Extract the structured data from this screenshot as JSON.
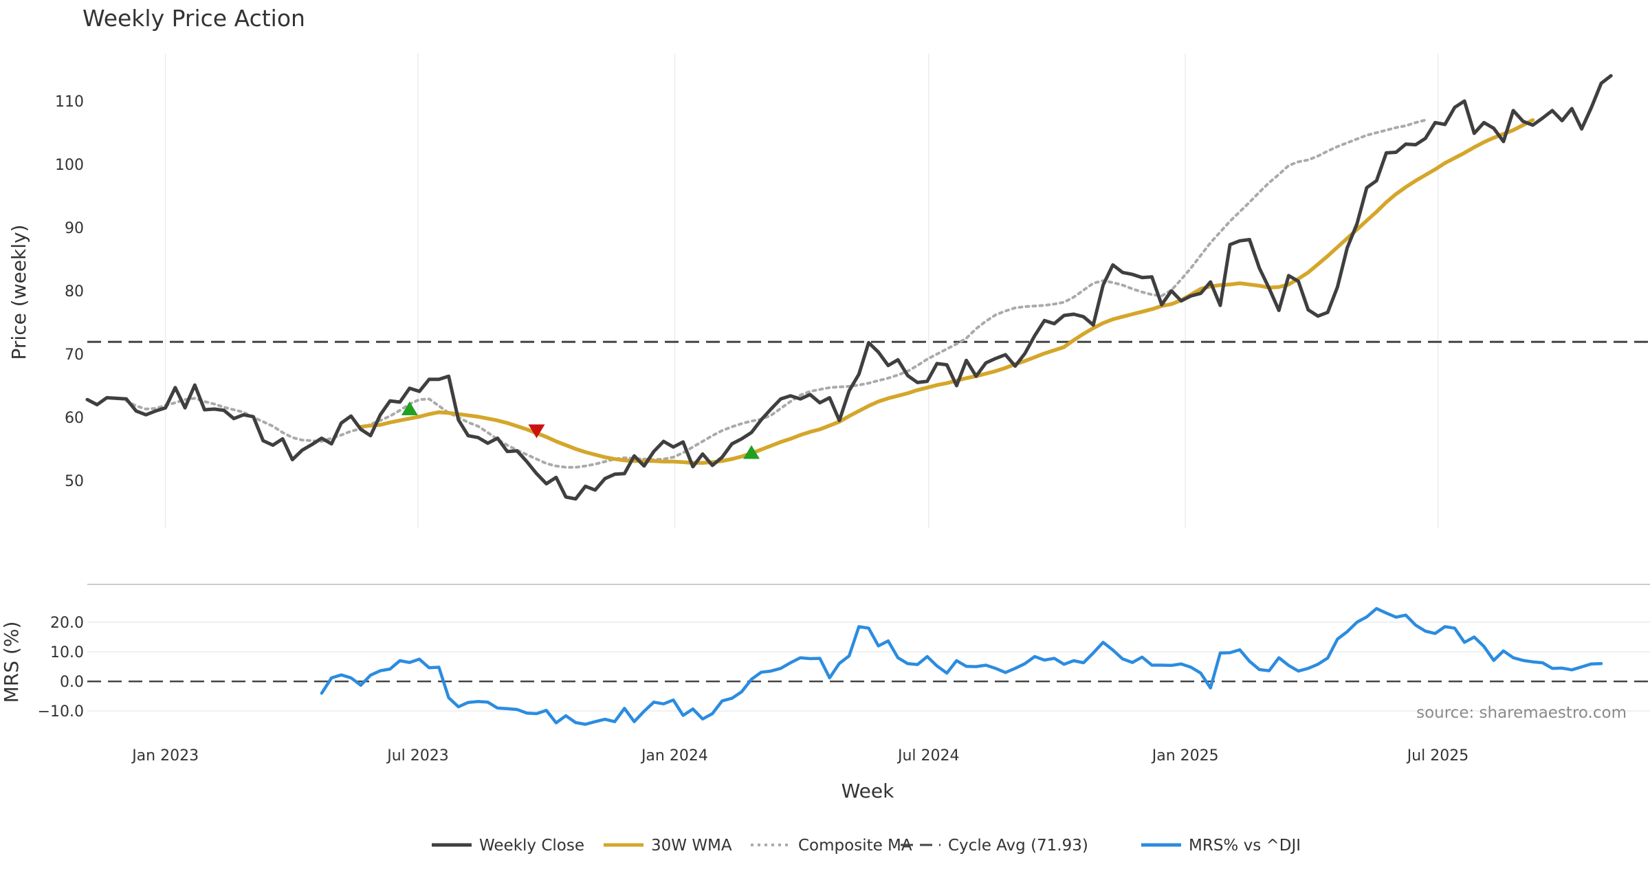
{
  "chart_data": [
    {
      "type": "line",
      "title": "Weekly Price Action",
      "ylabel": "Price (weekly)",
      "ylim": [
        42.5,
        117.5
      ],
      "yticks": [
        50,
        60,
        70,
        80,
        90,
        100,
        110
      ],
      "grid": true,
      "x_domain": [
        "2022-11-06",
        "2025-11-30"
      ],
      "reference_line": {
        "name": "Cycle Avg (71.93)",
        "value": 71.93,
        "color": "#444444",
        "style": "dashed"
      },
      "series": [
        {
          "name": "Weekly Close",
          "color": "#3f3f3f",
          "x_start": "2022-11-06",
          "step_days": 7,
          "values": [
            62.8,
            62.0,
            63.1,
            63.0,
            62.9,
            61.0,
            60.4,
            61.0,
            61.5,
            64.7,
            61.5,
            65.1,
            61.2,
            61.3,
            61.1,
            59.8,
            60.4,
            60.1,
            56.3,
            55.6,
            56.6,
            53.3,
            54.8,
            55.7,
            56.7,
            55.8,
            59.1,
            60.2,
            58.1,
            57.1,
            60.4,
            62.6,
            62.4,
            64.6,
            64.1,
            66.0,
            66.0,
            66.5,
            59.6,
            57.1,
            56.8,
            55.9,
            56.7,
            54.6,
            54.7,
            53.0,
            51.1,
            49.5,
            50.5,
            47.4,
            47.1,
            49.1,
            48.5,
            50.3,
            51.0,
            51.1,
            53.9,
            52.3,
            54.6,
            56.2,
            55.3,
            56.1,
            52.2,
            54.2,
            52.4,
            53.7,
            55.8,
            56.6,
            57.6,
            59.6,
            61.3,
            62.9,
            63.4,
            62.9,
            63.6,
            62.3,
            63.1,
            59.5,
            64.2,
            66.8,
            71.8,
            70.3,
            68.2,
            69.1,
            66.6,
            65.5,
            65.7,
            68.5,
            68.3,
            65.0,
            69.0,
            66.5,
            68.6,
            69.3,
            69.9,
            68.1,
            70.1,
            72.9,
            75.3,
            74.8,
            76.1,
            76.3,
            75.9,
            74.6,
            80.9,
            84.1,
            82.9,
            82.6,
            82.1,
            82.2,
            77.8,
            80.0,
            78.4,
            79.2,
            79.6,
            81.4,
            77.7,
            87.3,
            87.9,
            88.1,
            83.6,
            80.4,
            76.9,
            82.4,
            81.5,
            77.0,
            76.0,
            76.6,
            80.6,
            86.8,
            90.6,
            96.3,
            97.4,
            101.8,
            101.9,
            103.2,
            103.1,
            104.1,
            106.6,
            106.3,
            109.0,
            110.0,
            104.9,
            106.6,
            105.7,
            103.6,
            108.5,
            106.8,
            106.2,
            107.3,
            108.5,
            106.9,
            108.8,
            105.6,
            109.0,
            112.8,
            114.0
          ]
        },
        {
          "name": "30W WMA",
          "color": "#d4a62a",
          "x_start": "2023-05-21",
          "step_days": 7,
          "values": [
            58.5,
            58.7,
            58.8,
            59.2,
            59.5,
            59.8,
            60.1,
            60.5,
            60.8,
            60.7,
            60.5,
            60.3,
            60.1,
            59.8,
            59.5,
            59.1,
            58.6,
            58.1,
            57.5,
            56.9,
            56.2,
            55.6,
            55.0,
            54.5,
            54.1,
            53.7,
            53.4,
            53.2,
            53.1,
            53.1,
            53.1,
            53.0,
            53.0,
            52.9,
            52.8,
            52.8,
            52.9,
            53.1,
            53.4,
            53.8,
            54.3,
            54.9,
            55.5,
            56.1,
            56.6,
            57.2,
            57.7,
            58.1,
            58.7,
            59.3,
            60.2,
            61.0,
            61.8,
            62.5,
            63.0,
            63.4,
            63.8,
            64.3,
            64.7,
            65.1,
            65.4,
            65.8,
            66.2,
            66.5,
            66.9,
            67.3,
            67.8,
            68.4,
            68.9,
            69.5,
            70.1,
            70.6,
            71.1,
            72.2,
            73.2,
            74.1,
            74.9,
            75.5,
            75.9,
            76.3,
            76.7,
            77.1,
            77.6,
            77.9,
            78.5,
            79.4,
            80.3,
            80.7,
            80.9,
            81.0,
            81.2,
            81.0,
            80.8,
            80.5,
            80.6,
            81.0,
            81.9,
            82.9,
            84.2,
            85.5,
            86.9,
            88.3,
            89.7,
            91.1,
            92.5,
            94.0,
            95.3,
            96.4,
            97.4,
            98.3,
            99.2,
            100.2,
            101.0,
            101.8,
            102.7,
            103.5,
            104.2,
            104.8,
            105.4,
            106.2,
            107.0
          ]
        },
        {
          "name": "Composite MA",
          "color": "#aaaaaa",
          "style": "dotted",
          "x_start": "2022-12-04",
          "step_days": 7,
          "values": [
            62.6,
            61.8,
            61.3,
            61.4,
            61.9,
            62.3,
            62.8,
            63.0,
            62.5,
            62.1,
            61.6,
            61.2,
            60.8,
            60.0,
            59.3,
            58.6,
            57.6,
            56.8,
            56.4,
            56.3,
            56.2,
            56.7,
            57.2,
            57.8,
            58.2,
            58.9,
            59.5,
            60.2,
            61.1,
            62.1,
            62.8,
            62.9,
            61.8,
            60.7,
            60.0,
            59.2,
            58.6,
            57.6,
            56.5,
            55.6,
            54.8,
            54.1,
            53.4,
            52.7,
            52.3,
            52.1,
            52.1,
            52.3,
            52.6,
            53.0,
            53.4,
            53.6,
            53.5,
            53.4,
            53.3,
            53.4,
            53.7,
            54.4,
            55.3,
            56.2,
            57.1,
            57.9,
            58.5,
            59.0,
            59.4,
            59.7,
            60.3,
            61.4,
            62.5,
            63.5,
            64.1,
            64.4,
            64.7,
            64.8,
            64.9,
            65.1,
            65.4,
            65.8,
            66.2,
            66.7,
            67.3,
            68.2,
            69.2,
            70.0,
            70.8,
            71.6,
            72.5,
            74.0,
            75.2,
            76.2,
            76.8,
            77.3,
            77.5,
            77.6,
            77.7,
            77.9,
            78.2,
            79.0,
            80.1,
            81.2,
            81.6,
            81.3,
            80.9,
            80.3,
            79.8,
            79.4,
            79.2,
            80.1,
            81.8,
            83.6,
            85.6,
            87.6,
            89.3,
            91.0,
            92.5,
            94.0,
            95.6,
            97.1,
            98.4,
            99.8,
            100.4,
            100.7,
            101.3,
            102.1,
            102.8,
            103.4,
            104.0,
            104.6,
            105.0,
            105.4,
            105.8,
            106.1,
            106.6,
            107.0
          ]
        }
      ],
      "signals": [
        {
          "type": "buy",
          "date": "2023-06-25",
          "value": 61.3,
          "color": "#22a022"
        },
        {
          "type": "sell",
          "date": "2023-09-24",
          "value": 57.9,
          "color": "#cc1111"
        },
        {
          "type": "buy",
          "date": "2024-02-25",
          "value": 54.4,
          "color": "#22a022"
        }
      ],
      "annotation": "source: sharemaestro.com"
    },
    {
      "type": "line",
      "ylabel": "MRS (%)",
      "xlabel": "Week",
      "ylim": [
        -16,
        30
      ],
      "yticks": [
        -10.0,
        0.0,
        10.0,
        20.0
      ],
      "ytick_labels": [
        "−10.0",
        "0.0",
        "10.0",
        "20.0"
      ],
      "reference_line": {
        "value": 0,
        "style": "dashed",
        "color": "#444444"
      },
      "xticks": [
        {
          "label": "Jan 2023",
          "date": "2023-01-01"
        },
        {
          "label": "Jul 2023",
          "date": "2023-07-01"
        },
        {
          "label": "Jan 2024",
          "date": "2024-01-01"
        },
        {
          "label": "Jul 2024",
          "date": "2024-07-01"
        },
        {
          "label": "Jan 2025",
          "date": "2025-01-01"
        },
        {
          "label": "Jul 2025",
          "date": "2025-07-01"
        }
      ],
      "series": [
        {
          "name": "MRS% vs ^DJI",
          "color": "#2b8ce0",
          "x_start": "2023-04-23",
          "step_days": 7,
          "values": [
            -4.0,
            1.2,
            2.2,
            1.2,
            -1.3,
            2.1,
            3.6,
            4.2,
            7.0,
            6.4,
            7.5,
            4.6,
            4.8,
            -5.5,
            -8.6,
            -7.1,
            -6.8,
            -7.0,
            -9.0,
            -9.2,
            -9.5,
            -10.7,
            -10.9,
            -9.8,
            -14.0,
            -11.6,
            -13.9,
            -14.5,
            -13.6,
            -12.8,
            -13.6,
            -9.1,
            -13.6,
            -10.1,
            -7.0,
            -7.6,
            -6.3,
            -11.5,
            -9.3,
            -12.7,
            -10.9,
            -6.6,
            -5.7,
            -3.5,
            0.7,
            3.1,
            3.5,
            4.4,
            6.3,
            8.0,
            7.7,
            7.8,
            1.2,
            6.1,
            8.6,
            18.5,
            18.0,
            12.0,
            13.7,
            8.0,
            6.0,
            5.7,
            8.4,
            5.2,
            2.8,
            7.0,
            5.1,
            5.0,
            5.5,
            4.4,
            3.0,
            4.4,
            6.0,
            8.4,
            7.2,
            7.8,
            5.8,
            7.0,
            6.3,
            9.6,
            13.2,
            10.6,
            7.6,
            6.4,
            8.2,
            5.5,
            5.5,
            5.4,
            5.9,
            4.8,
            2.8,
            -2.2,
            9.6,
            9.7,
            10.7,
            6.8,
            4.0,
            3.6,
            8.0,
            5.4,
            3.5,
            4.4,
            5.8,
            7.9,
            14.3,
            16.8,
            20.0,
            21.8,
            24.6,
            23.1,
            21.7,
            22.4,
            19.0,
            17.0,
            16.2,
            18.5,
            18.0,
            13.2,
            15.0,
            11.8,
            7.1,
            10.3,
            8.0,
            7.1,
            6.6,
            6.3,
            4.4,
            4.5,
            3.9,
            4.9,
            5.9,
            6.0
          ]
        }
      ]
    }
  ],
  "legend": {
    "position": "bottom-center",
    "items": [
      {
        "label": "Weekly Close",
        "color": "#3f3f3f",
        "style": "solid"
      },
      {
        "label": "30W WMA",
        "color": "#d4a62a",
        "style": "solid"
      },
      {
        "label": "Composite MA",
        "color": "#aaaaaa",
        "style": "dotted"
      },
      {
        "label": "Cycle Avg (71.93)",
        "color": "#444444",
        "style": "dashed"
      },
      {
        "label": "MRS% vs ^DJI",
        "color": "#2b8ce0",
        "style": "solid"
      }
    ]
  }
}
